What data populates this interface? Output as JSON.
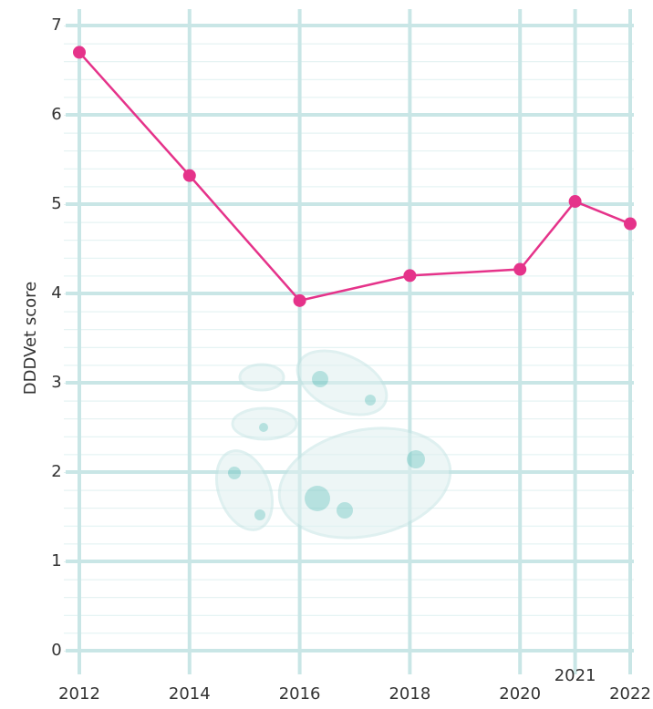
{
  "chart_data": {
    "type": "line",
    "y_label": "DDDVet score",
    "x": [
      2012,
      2014,
      2016,
      2018,
      2020,
      2021,
      2022
    ],
    "series": [
      {
        "name": "DDDVet score",
        "color": "#e5338a",
        "values": [
          6.7,
          5.32,
          3.92,
          4.2,
          4.27,
          5.03,
          4.78
        ]
      }
    ],
    "xlim": [
      2012,
      2022
    ],
    "xticks": [
      2012,
      2014,
      2016,
      2018,
      2020,
      2021,
      2022
    ],
    "ylim": [
      0,
      7
    ],
    "yticks": [
      0,
      1,
      2,
      3,
      4,
      5,
      6,
      7
    ],
    "grid": true,
    "grid_color": "#c9e6e6"
  }
}
